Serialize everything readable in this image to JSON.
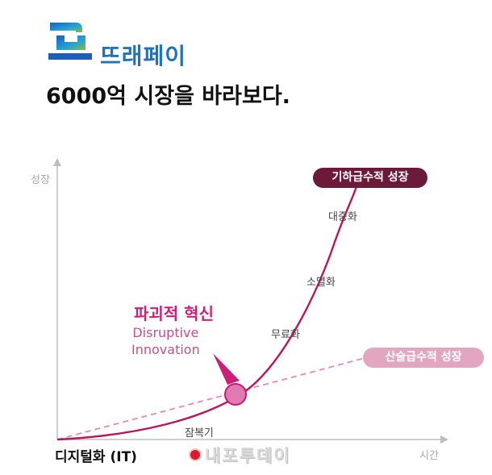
{
  "brand": {
    "logo_text": "뜨래페이"
  },
  "headline": "6000억 시장을 바라보다.",
  "axes": {
    "y_label": "성장",
    "x_label": "시간"
  },
  "curves": {
    "exponential_label": "기하급수적 성장",
    "linear_label": "산술급수적 성장"
  },
  "stages": {
    "s1": "잠복기",
    "s2": "무료화",
    "s3": "소멸화",
    "s4": "대중화"
  },
  "disruption": {
    "title": "파괴적 혁신",
    "subtitle_line1": "Disruptive",
    "subtitle_line2": "Innovation"
  },
  "start_label": "디지털화 (IT)",
  "watermark": "내포투데이",
  "colors": {
    "exponential": "#b8175f",
    "linear": "#e28aaf",
    "highlight": "#d9439a",
    "axis": "#bdbdbd",
    "brand_blue": "#1e73be"
  },
  "icons": {
    "logo": "logo-mark-icon",
    "watermark": "watermark-dot-icon"
  }
}
